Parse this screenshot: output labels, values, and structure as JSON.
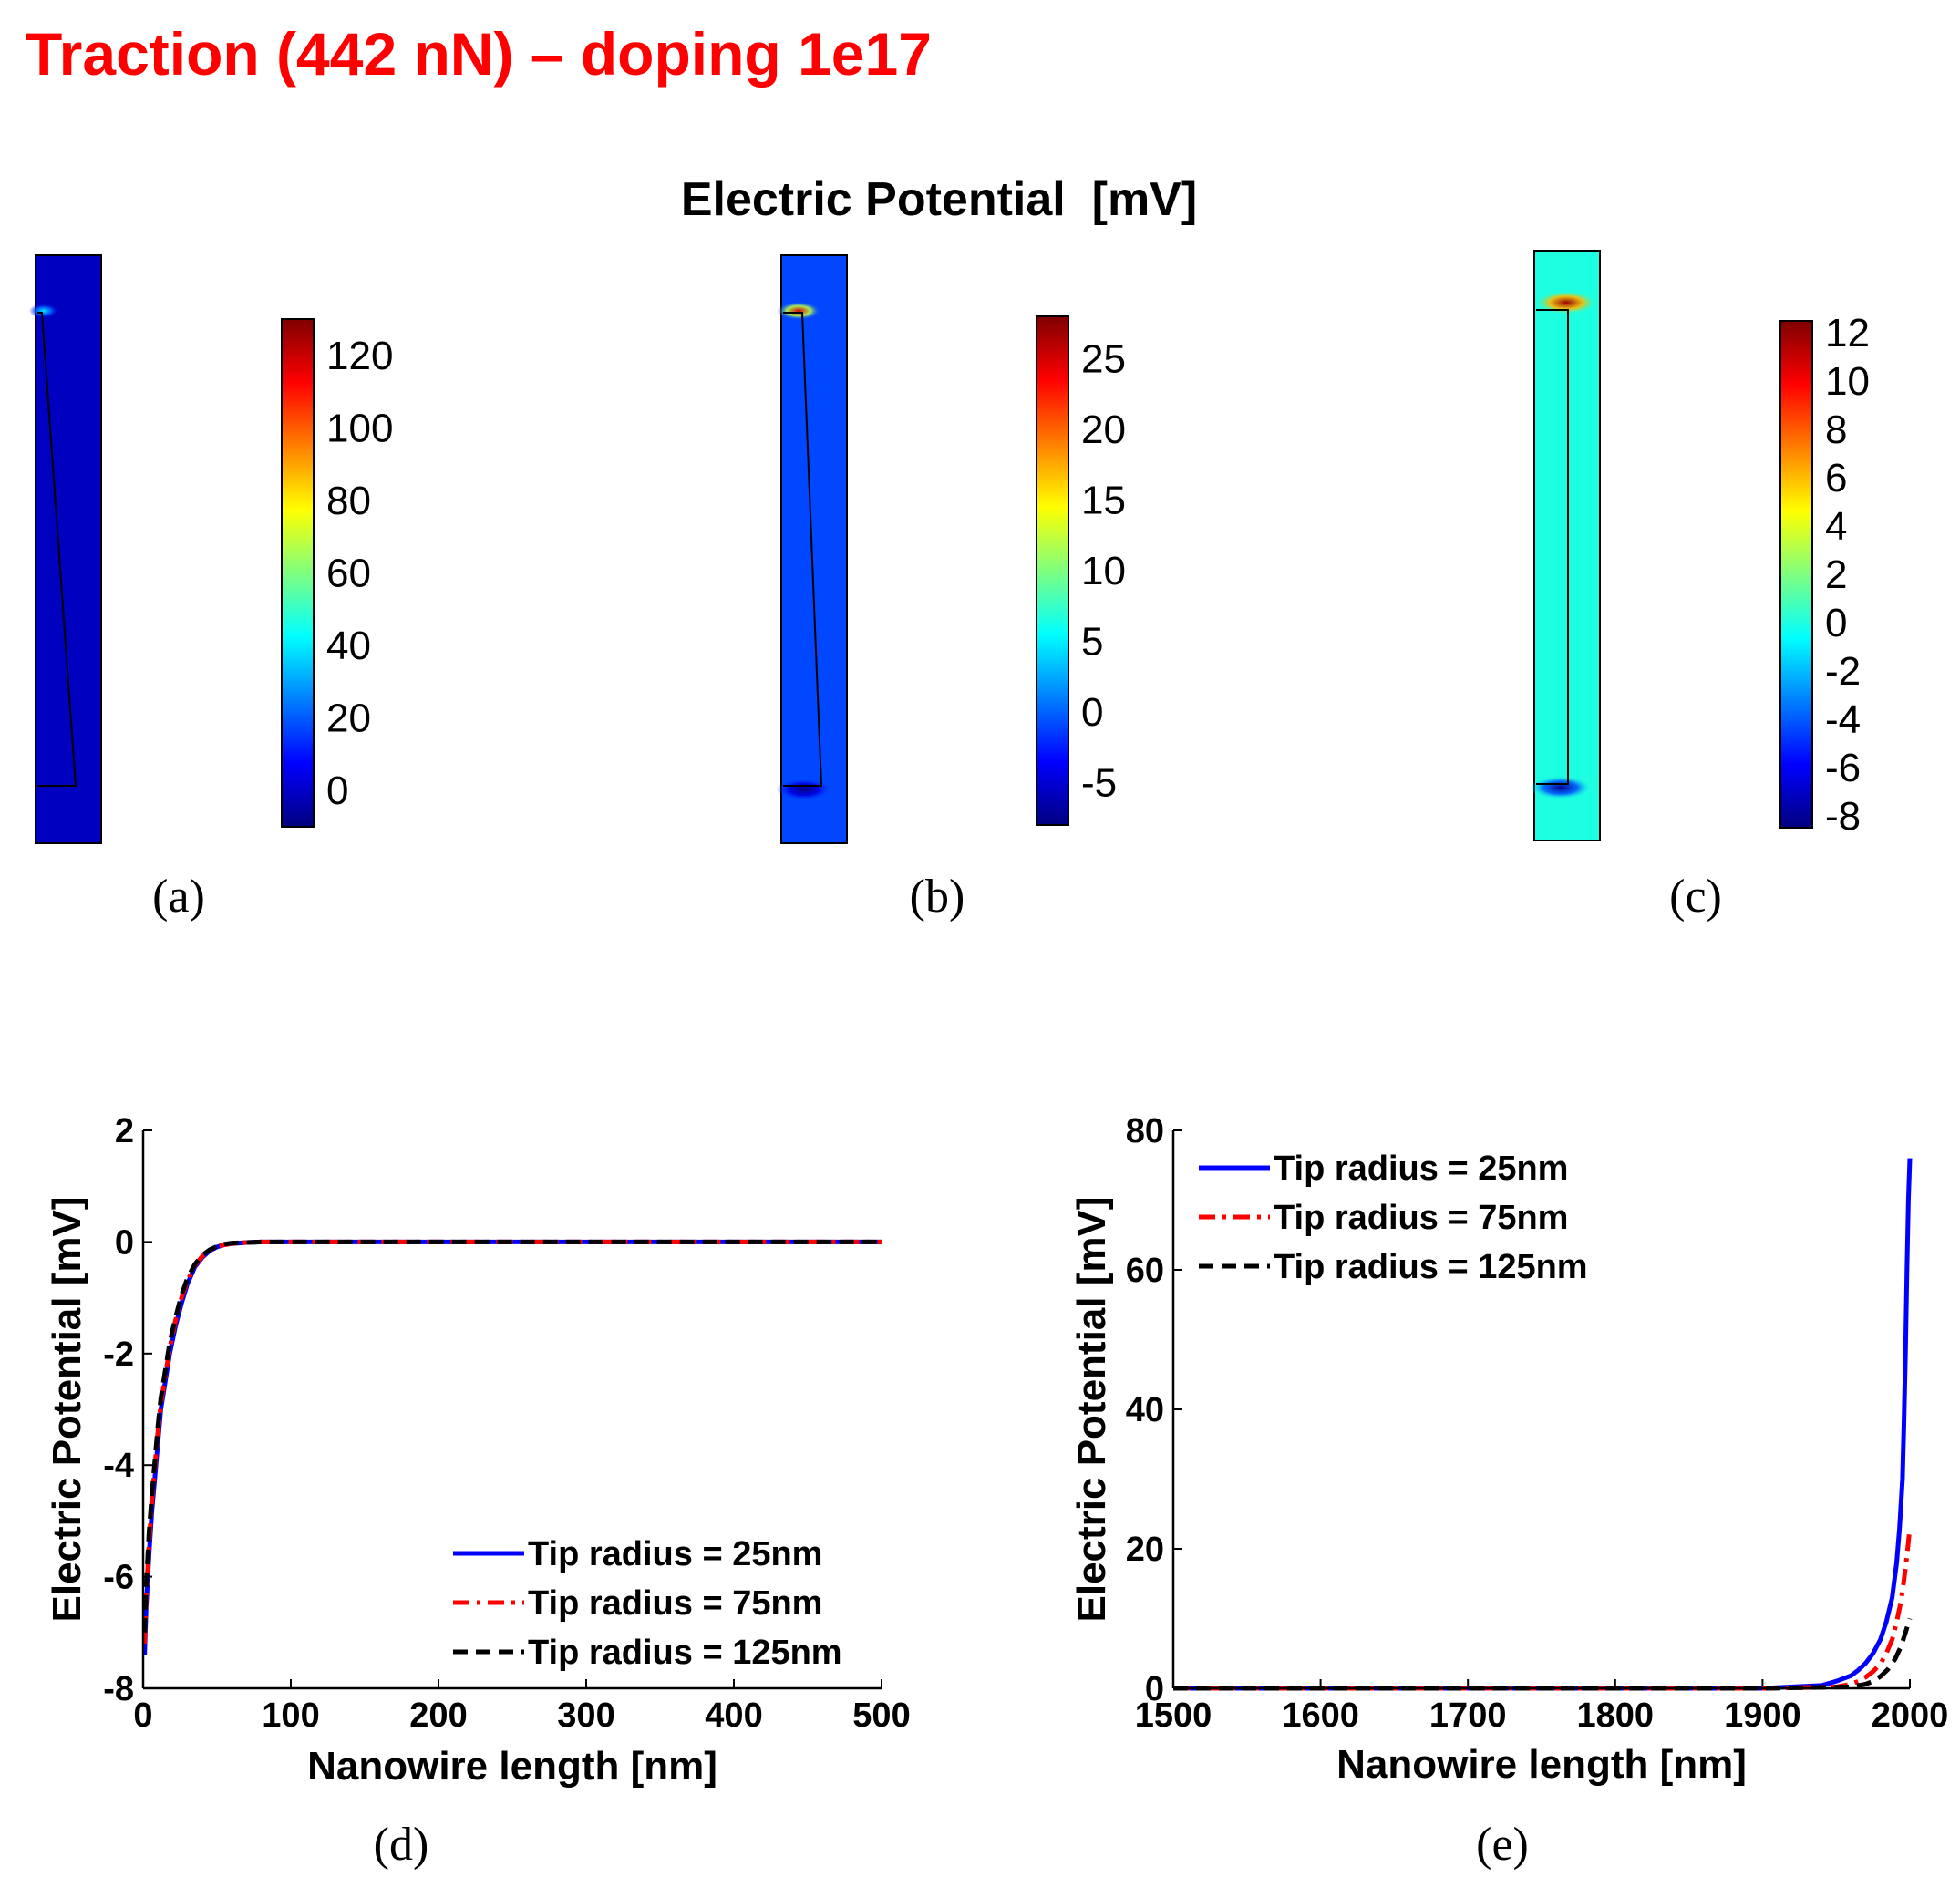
{
  "page_title": "Traction (442 nN) – doping 1e17",
  "maps_title": "Electric Potential  [mV]",
  "colormap": [
    "#00007f",
    "#0000ff",
    "#007fff",
    "#00ffff",
    "#7fff7f",
    "#ffff00",
    "#ff7f00",
    "#ff0000",
    "#7f0000"
  ],
  "colors": {
    "title": "#ff0000",
    "series_25": "#0000ff",
    "series_75": "#ff0000",
    "series_125": "#000000"
  },
  "chart_data": [
    {
      "type": "heatmap",
      "panel_label": "(a)",
      "colorbar_label": "Electric Potential [mV]",
      "colorbar_range": [
        -10,
        130
      ],
      "colorbar_ticks": [
        "120",
        "100",
        "80",
        "60",
        "40",
        "20",
        "0"
      ],
      "colorbar_tick_values": [
        120,
        100,
        80,
        60,
        40,
        20,
        0
      ],
      "background_value": -1,
      "hotspot_top_value": 40,
      "hotspot_bottom_value": 5
    },
    {
      "type": "heatmap",
      "panel_label": "(b)",
      "colorbar_label": "Electric Potential [mV]",
      "colorbar_range": [
        -8,
        28
      ],
      "colorbar_ticks": [
        "25",
        "20",
        "15",
        "10",
        "5",
        "0",
        "-5"
      ],
      "colorbar_tick_values": [
        25,
        20,
        15,
        10,
        5,
        0,
        -5
      ],
      "background_value": -1,
      "hotspot_top_value": 25,
      "hotspot_bottom_value": -8
    },
    {
      "type": "heatmap",
      "panel_label": "(c)",
      "colorbar_label": "Electric Potential [mV]",
      "colorbar_range": [
        -8.5,
        12.5
      ],
      "colorbar_ticks": [
        "12",
        "10",
        "8",
        "6",
        "4",
        "2",
        "0",
        "-2",
        "-4",
        "-6",
        "-8"
      ],
      "colorbar_tick_values": [
        12,
        10,
        8,
        6,
        4,
        2,
        0,
        -2,
        -4,
        -6,
        -8
      ],
      "background_value": 0,
      "hotspot_top_value": 12,
      "hotspot_bottom_value": -8
    },
    {
      "type": "line",
      "panel_label": "(d)",
      "xlabel": "Nanowire length [nm]",
      "ylabel": "Electric Potential [mV]",
      "xlim": [
        0,
        500
      ],
      "ylim": [
        -8,
        2
      ],
      "xticks": [
        "0",
        "100",
        "200",
        "300",
        "400",
        "500"
      ],
      "xtick_values": [
        0,
        100,
        200,
        300,
        400,
        500
      ],
      "yticks": [
        "2",
        "0",
        "-2",
        "-4",
        "-6",
        "-8"
      ],
      "ytick_values": [
        2,
        0,
        -2,
        -4,
        -6,
        -8
      ],
      "legend_position": "bottom-right",
      "series": [
        {
          "name": "Tip radius = 25nm",
          "style": "solid",
          "x": [
            1,
            2,
            4,
            6,
            8,
            10,
            12,
            15,
            18,
            22,
            26,
            30,
            35,
            40,
            45,
            50,
            55,
            60,
            70,
            80,
            100,
            150,
            200,
            300,
            400,
            500
          ],
          "y": [
            -7.4,
            -6.6,
            -5.6,
            -4.8,
            -4.2,
            -3.6,
            -3.0,
            -2.5,
            -2.0,
            -1.5,
            -1.1,
            -0.75,
            -0.45,
            -0.28,
            -0.16,
            -0.09,
            -0.05,
            -0.03,
            -0.01,
            0,
            0,
            0,
            0,
            0,
            0,
            0
          ]
        },
        {
          "name": "Tip radius = 75nm",
          "style": "dashdot",
          "x": [
            1,
            2,
            4,
            6,
            8,
            10,
            12,
            15,
            18,
            22,
            26,
            30,
            35,
            40,
            45,
            50,
            55,
            60,
            70,
            80,
            100,
            150,
            200,
            300,
            400,
            500
          ],
          "y": [
            -7.2,
            -6.4,
            -5.4,
            -4.6,
            -4.0,
            -3.4,
            -2.9,
            -2.4,
            -1.9,
            -1.4,
            -1.0,
            -0.7,
            -0.42,
            -0.26,
            -0.15,
            -0.08,
            -0.05,
            -0.03,
            -0.01,
            0,
            0,
            0,
            0,
            0,
            0,
            0
          ]
        },
        {
          "name": "Tip radius = 125nm",
          "style": "dashed",
          "x": [
            1,
            2,
            4,
            6,
            8,
            10,
            12,
            15,
            18,
            22,
            26,
            30,
            35,
            40,
            45,
            50,
            55,
            60,
            70,
            80,
            100,
            150,
            200,
            300,
            400,
            500
          ],
          "y": [
            -7.0,
            -6.2,
            -5.2,
            -4.5,
            -3.9,
            -3.3,
            -2.8,
            -2.3,
            -1.8,
            -1.35,
            -0.95,
            -0.65,
            -0.4,
            -0.24,
            -0.14,
            -0.08,
            -0.04,
            -0.02,
            -0.01,
            0,
            0,
            0,
            0,
            0,
            0,
            0
          ]
        }
      ]
    },
    {
      "type": "line",
      "panel_label": "(e)",
      "xlabel": "Nanowire length [nm]",
      "ylabel": "Electric Potential [mV]",
      "xlim": [
        1500,
        2000
      ],
      "ylim": [
        0,
        80
      ],
      "xticks": [
        "1500",
        "1600",
        "1700",
        "1800",
        "1900",
        "2000"
      ],
      "xtick_values": [
        1500,
        1600,
        1700,
        1800,
        1900,
        2000
      ],
      "yticks": [
        "80",
        "60",
        "40",
        "20",
        "0"
      ],
      "ytick_values": [
        80,
        60,
        40,
        20,
        0
      ],
      "legend_position": "top-left",
      "series": [
        {
          "name": "Tip radius = 25nm",
          "style": "solid",
          "x": [
            1500,
            1900,
            1940,
            1950,
            1960,
            1965,
            1970,
            1975,
            1980,
            1984,
            1988,
            1991,
            1993,
            1995,
            1996,
            1997,
            1998,
            1999,
            2000
          ],
          "y": [
            0,
            0,
            0.4,
            1.0,
            1.8,
            2.6,
            3.6,
            5.0,
            7.0,
            9.5,
            13,
            18,
            23,
            30,
            38,
            48,
            60,
            70,
            76
          ]
        },
        {
          "name": "Tip radius = 75nm",
          "style": "dashdot",
          "x": [
            1500,
            1900,
            1950,
            1960,
            1965,
            1970,
            1975,
            1980,
            1984,
            1988,
            1991,
            1994,
            1996,
            1998,
            1999,
            2000
          ],
          "y": [
            0,
            0,
            0.2,
            0.6,
            1.0,
            1.6,
            2.4,
            3.5,
            5.0,
            7.0,
            9.5,
            12.5,
            15.5,
            19,
            21,
            23
          ]
        },
        {
          "name": "Tip radius = 125nm",
          "style": "dashed",
          "x": [
            1500,
            1900,
            1960,
            1970,
            1975,
            1980,
            1985,
            1990,
            1994,
            1997,
            2000
          ],
          "y": [
            0,
            0,
            0.2,
            0.6,
            1.0,
            1.7,
            2.7,
            4.2,
            6.0,
            8.0,
            10
          ]
        }
      ]
    }
  ]
}
